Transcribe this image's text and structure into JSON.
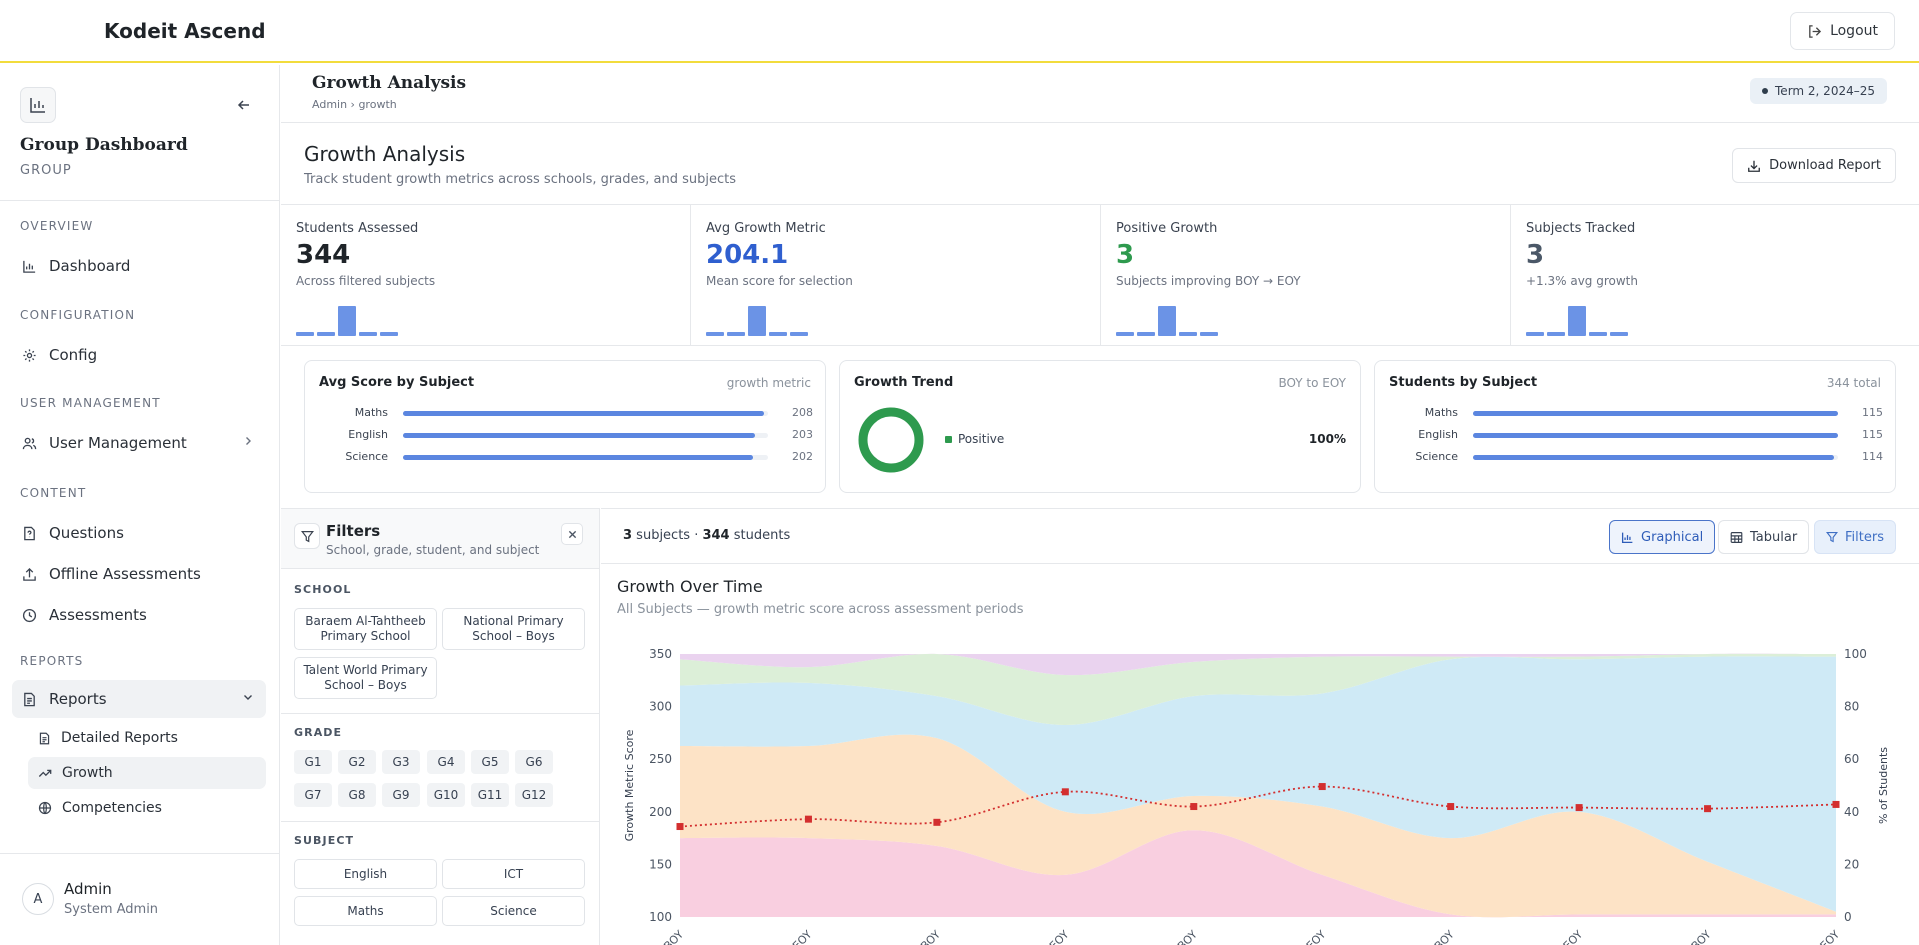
{
  "app": {
    "brand": "Kodeit Ascend",
    "logout_label": "Logout"
  },
  "sidebar": {
    "title": "Group Dashboard",
    "subtitle": "GROUP",
    "sections": {
      "overview": "OVERVIEW",
      "configuration": "CONFIGURATION",
      "user_management": "USER MANAGEMENT",
      "content": "CONTENT",
      "reports": "REPORTS"
    },
    "items": {
      "dashboard": "Dashboard",
      "config": "Config",
      "user_management": "User Management",
      "questions": "Questions",
      "offline_assessments": "Offline Assessments",
      "assessments": "Assessments",
      "reports": "Reports",
      "detailed_reports": "Detailed Reports",
      "growth": "Growth",
      "competencies": "Competencies"
    },
    "user": {
      "initial": "A",
      "name": "Admin",
      "role": "System Admin"
    }
  },
  "page_header": {
    "title": "Growth Analysis",
    "breadcrumb": "Admin › growth",
    "term": "Term 2, 2024–25"
  },
  "section": {
    "title": "Growth Analysis",
    "description": "Track student growth metrics across schools, grades, and subjects",
    "download_label": "Download Report"
  },
  "kpis": [
    {
      "label": "Students Assessed",
      "value": "344",
      "sub": "Across filtered subjects",
      "color": "#1f2429"
    },
    {
      "label": "Avg Growth Metric",
      "value": "204.1",
      "sub": "Mean score for selection",
      "color": "#2f5fcf"
    },
    {
      "label": "Positive Growth",
      "value": "3",
      "sub": "Subjects improving BOY → EOY",
      "color": "#2e9a4e"
    },
    {
      "label": "Subjects Tracked",
      "value": "3",
      "sub": "+1.3% avg growth",
      "color": "#4b5868"
    }
  ],
  "cards": {
    "avg_score": {
      "title": "Avg Score by Subject",
      "right": "growth metric",
      "rows": [
        {
          "name": "Maths",
          "value": "208",
          "fraction": 0.99
        },
        {
          "name": "English",
          "value": "203",
          "fraction": 0.965
        },
        {
          "name": "Science",
          "value": "202",
          "fraction": 0.96
        }
      ]
    },
    "trend": {
      "title": "Growth Trend",
      "right": "BOY to EOY",
      "legend": "Positive",
      "percent": "100%",
      "positive_fraction": 1.0,
      "color": "#2e9a4e"
    },
    "students": {
      "title": "Students by Subject",
      "right": "344 total",
      "rows": [
        {
          "name": "Maths",
          "value": "115",
          "fraction": 1.0
        },
        {
          "name": "English",
          "value": "115",
          "fraction": 1.0
        },
        {
          "name": "Science",
          "value": "114",
          "fraction": 0.99
        }
      ]
    }
  },
  "filters": {
    "title": "Filters",
    "description": "School, grade, student, and subject",
    "school_label": "SCHOOL",
    "schools": [
      "Baraem Al-Tahtheeb Primary School",
      "National Primary School – Boys",
      "Talent World Primary School – Boys"
    ],
    "grade_label": "GRADE",
    "grades": [
      "G1",
      "G2",
      "G3",
      "G4",
      "G5",
      "G6",
      "G7",
      "G8",
      "G9",
      "G10",
      "G11",
      "G12"
    ],
    "subject_label": "SUBJECT",
    "subjects": [
      "English",
      "ICT",
      "Maths",
      "Science"
    ]
  },
  "toolbar": {
    "count_subjects": "3",
    "count_subjects_label": " subjects · ",
    "count_students": "344",
    "count_students_label": " students",
    "graphical": "Graphical",
    "tabular": "Tabular",
    "filters": "Filters"
  },
  "chart_head": {
    "title": "Growth Over Time",
    "subtitle": "All Subjects — growth metric score across assessment periods"
  },
  "chart_data": {
    "type": "area",
    "ylabel": "Growth Metric Score",
    "y2label": "% of Students",
    "ylim": [
      100,
      350
    ],
    "y_ticks": [
      100,
      150,
      200,
      250,
      300,
      350
    ],
    "y2lim": [
      0,
      100
    ],
    "y2_ticks": [
      0,
      20,
      40,
      60,
      80,
      100
    ],
    "x": [
      "BOY",
      "EOY",
      "BOY",
      "EOY",
      "BOY",
      "EOY",
      "BOY",
      "EOY",
      "BOY",
      "EOY"
    ],
    "stacked_percent_series": [
      {
        "color": "#f9cfe0",
        "values": [
          30,
          30,
          27,
          16,
          33,
          16,
          1,
          1,
          1,
          1
        ]
      },
      {
        "color": "#fde3c6",
        "values": [
          35,
          35,
          41,
          24,
          13,
          26,
          29,
          39,
          20,
          1
        ]
      },
      {
        "color": "#cfeaf6",
        "values": [
          23,
          24,
          16,
          33,
          38,
          43,
          68,
          58,
          78,
          97
        ]
      },
      {
        "color": "#dcefd8",
        "values": [
          10,
          6,
          16,
          19,
          13,
          14,
          1,
          1,
          1,
          1
        ]
      },
      {
        "color": "#ead3ef",
        "values": [
          2,
          5,
          0,
          8,
          3,
          1,
          1,
          1,
          0,
          0
        ]
      }
    ],
    "line_series": {
      "color": "#d32f2f",
      "values": [
        186,
        193,
        190,
        219,
        205,
        224,
        205,
        204,
        203,
        207
      ]
    }
  }
}
